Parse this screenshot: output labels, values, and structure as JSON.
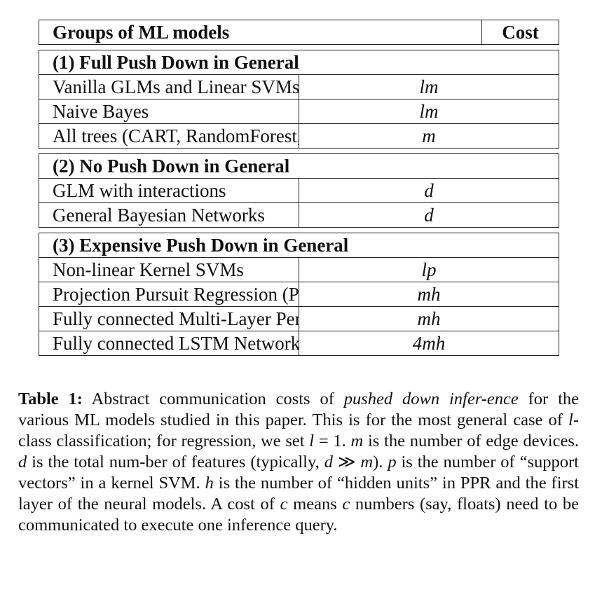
{
  "table": {
    "header": {
      "group_col": "Groups of ML models",
      "cost_col": "Cost"
    },
    "sections": [
      {
        "title": "(1) Full Push Down in General",
        "rows": [
          {
            "model": "Vanilla GLMs and Linear SVMs",
            "cost": "lm"
          },
          {
            "model": "Naive Bayes",
            "cost": "lm"
          },
          {
            "model": "All trees (CART, RandomForest, XGBoost)",
            "cost": "m"
          }
        ]
      },
      {
        "title": "(2) No Push Down in General",
        "rows": [
          {
            "model": "GLM with interactions",
            "cost": "d"
          },
          {
            "model": "General Bayesian Networks",
            "cost": "d"
          }
        ]
      },
      {
        "title": "(3) Expensive Push Down in General",
        "rows": [
          {
            "model": "Non-linear Kernel SVMs",
            "cost": "lp"
          },
          {
            "model": "Projection Pursuit Regression (PPR)",
            "cost": "mh"
          },
          {
            "model": "Fully connected Multi-Layer Perceptron",
            "cost": "mh"
          },
          {
            "model": "Fully connected LSTM Network",
            "cost": "4mh"
          }
        ]
      }
    ]
  },
  "caption": {
    "label": "Table 1:",
    "part1": " Abstract communication costs of ",
    "italic1": "pushed down infer-ence",
    "part2": " for the various ML models studied in this paper. This is for the most general case of ",
    "italic2": "l",
    "part3": "-class classification; for regression, we set ",
    "italic3": "l",
    "part4": " = 1.  ",
    "italic4": "m",
    "part5": " is the number of edge devices. ",
    "italic5": "d",
    "part6": " is the total num-ber of features (typically, ",
    "italic6": "d",
    "part7": " ≫ ",
    "italic7": "m",
    "part8": "). ",
    "italic8": "p",
    "part9": " is the number of “support vectors” in a kernel SVM. ",
    "italic9": "h",
    "part10": " is the number of “hidden units” in PPR and the first layer of the neural models. A cost of ",
    "italic10": "c",
    "part11": " means ",
    "italic11": "c",
    "part12": " numbers (say, floats) need to be communicated to execute one inference query."
  }
}
